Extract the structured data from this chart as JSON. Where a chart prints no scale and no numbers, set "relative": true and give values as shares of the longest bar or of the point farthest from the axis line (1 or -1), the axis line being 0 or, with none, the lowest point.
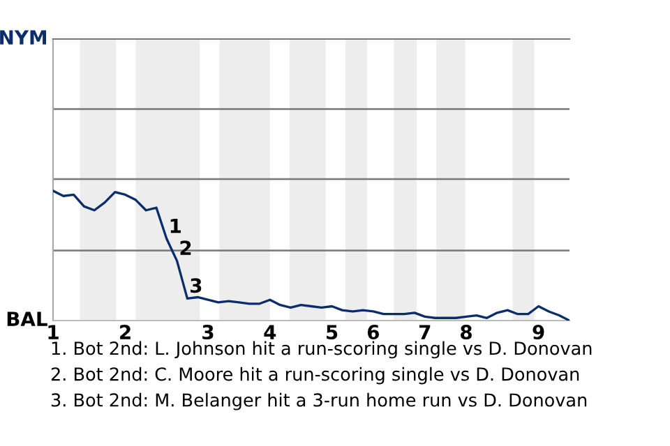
{
  "chart_data": {
    "type": "line",
    "relative": true,
    "categories": [
      "1",
      null,
      null,
      null,
      null,
      null,
      null,
      "2",
      null,
      null,
      null,
      null,
      null,
      null,
      null,
      "3",
      null,
      null,
      null,
      null,
      null,
      "4",
      null,
      null,
      null,
      null,
      null,
      "5",
      null,
      null,
      null,
      "6",
      null,
      null,
      null,
      null,
      "7",
      null,
      null,
      null,
      "8",
      null,
      null,
      null,
      null,
      null,
      null,
      "9",
      null,
      null,
      null
    ],
    "series": [
      {
        "color": "#0b2d6b",
        "values": [
          1.0,
          0.96,
          0.97,
          0.88,
          0.85,
          0.91,
          0.99,
          0.97,
          0.93,
          0.85,
          0.87,
          0.63,
          0.46,
          0.17,
          0.18,
          0.16,
          0.14,
          0.15,
          0.14,
          0.13,
          0.13,
          0.16,
          0.12,
          0.1,
          0.12,
          0.11,
          0.1,
          0.11,
          0.08,
          0.07,
          0.08,
          0.07,
          0.05,
          0.05,
          0.05,
          0.06,
          0.03,
          0.02,
          0.02,
          0.02,
          0.03,
          0.04,
          0.02,
          0.06,
          0.08,
          0.05,
          0.05,
          0.11,
          0.07,
          0.04,
          0
        ]
      }
    ],
    "ref_lines": [
      {
        "axis": "y",
        "value": 0.54,
        "color": "#777777"
      },
      {
        "axis": "y",
        "value": 1.09,
        "color": "#777777"
      },
      {
        "axis": "y",
        "value": 1.63,
        "color": "#777777"
      }
    ],
    "annotations": [
      "NYM",
      "BAL",
      "1",
      "2",
      "3",
      "1. Bot 2nd: L. Johnson hit a run-scoring single vs D. Donovan",
      "2. Bot 2nd: C. Moore hit a run-scoring single vs D. Donovan",
      "3. Bot 2nd: M. Belanger hit a 3-run home run vs D. Donovan"
    ]
  }
}
